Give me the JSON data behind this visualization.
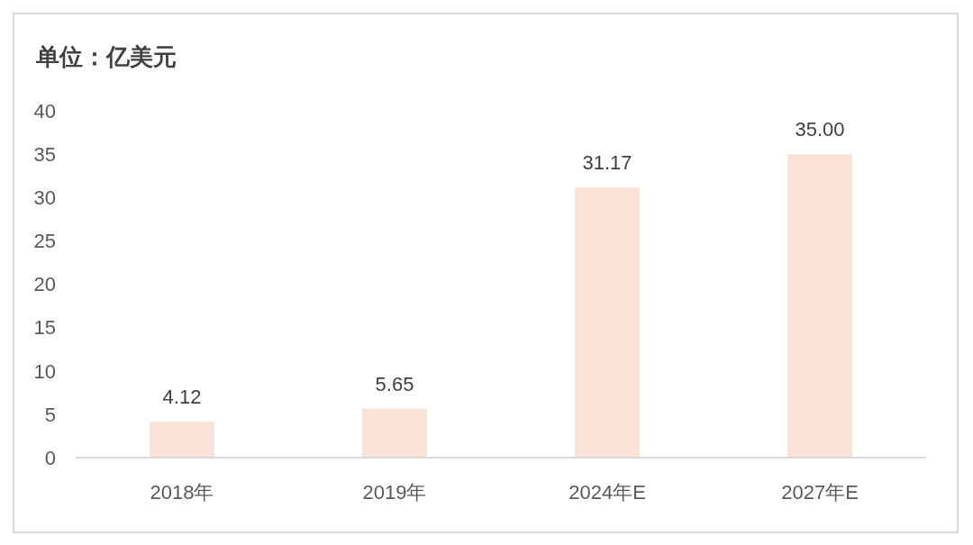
{
  "chart_data": {
    "type": "bar",
    "ylabel": "单位：亿美元",
    "categories": [
      "2018年",
      "2019年",
      "2024年E",
      "2027年E"
    ],
    "values": [
      4.12,
      5.65,
      31.17,
      35.0
    ],
    "value_labels": [
      "4.12",
      "5.65",
      "31.17",
      "35.00"
    ],
    "color": "#f9e2d6",
    "ylim": [
      0,
      40
    ],
    "yticks": [
      0,
      5,
      10,
      15,
      20,
      25,
      30,
      35,
      40
    ]
  }
}
